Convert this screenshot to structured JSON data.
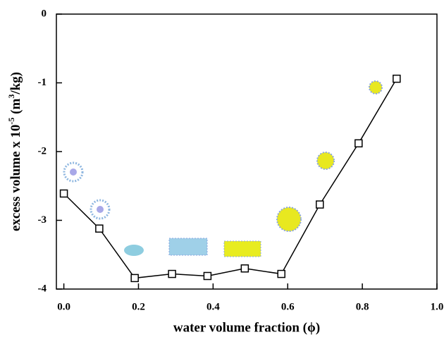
{
  "chart_data": {
    "type": "line",
    "x_label": "water volume fraction (ϕ)",
    "y_label": [
      "excess volume x 10",
      "-5",
      " (m",
      "3",
      "/kg)"
    ],
    "x": [
      0.0,
      0.095,
      0.19,
      0.29,
      0.385,
      0.485,
      0.583,
      0.686,
      0.79,
      0.892
    ],
    "series": [
      {
        "color": "#000000",
        "values": [
          -2.61,
          -3.12,
          -3.84,
          -3.78,
          -3.81,
          -3.7,
          -3.78,
          -2.77,
          -1.88,
          -0.94
        ]
      }
    ],
    "xlim": [
      -0.02,
      1.0
    ],
    "xticks": [
      {
        "value": 0,
        "label": "0.0"
      },
      0.2,
      0.4,
      0.6,
      0.8,
      {
        "value": 1,
        "label": "1.0"
      }
    ],
    "ylim": [
      -4,
      0
    ],
    "yticks": [
      0,
      -1,
      -2,
      -3,
      -4
    ]
  }
}
